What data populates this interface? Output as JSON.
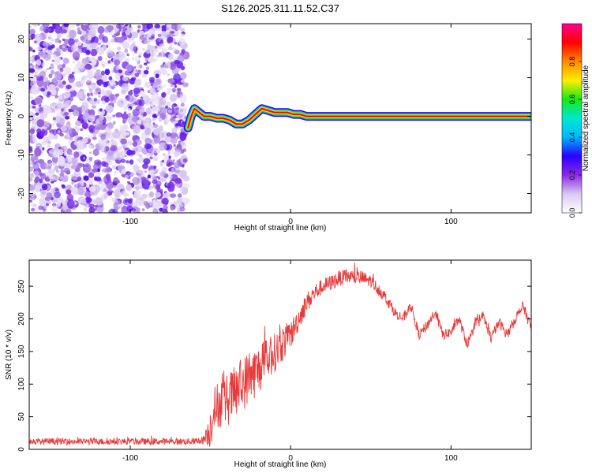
{
  "title": "S126.2025.311.11.52.C37",
  "chart_data": [
    {
      "type": "heatmap",
      "xlabel": "Height of straight line (km)",
      "ylabel": "Frequency (Hz)",
      "xlim": [
        -163,
        150
      ],
      "ylim": [
        -25,
        24
      ],
      "xticks": [
        -100,
        0,
        100
      ],
      "xtick_labels": [
        "-100",
        "0",
        "100"
      ],
      "yticks": [
        -20,
        -10,
        0,
        10,
        20
      ],
      "ytick_labels": [
        "-20",
        "-10",
        "0",
        "10",
        "20"
      ],
      "noise_region_x": [
        -163,
        -65
      ],
      "ridge": {
        "x": [
          -64,
          -62,
          -60,
          -57,
          -54,
          -50,
          -46,
          -42,
          -38,
          -34,
          -30,
          -26,
          -22,
          -18,
          -14,
          -10,
          -6,
          -2,
          2,
          6,
          10,
          14,
          18,
          20,
          150
        ],
        "y": [
          -3,
          0,
          2,
          1,
          0,
          0,
          -0.5,
          -0.5,
          -1,
          -2,
          -2,
          -1,
          0.5,
          2,
          1.5,
          1,
          1,
          1,
          0.5,
          0.5,
          0,
          0,
          0,
          0,
          0
        ]
      },
      "colorbar": {
        "label": "Normalized spectral amplitude",
        "range": [
          0,
          1
        ],
        "ticks": [
          0.0,
          0.2,
          0.4,
          0.6,
          0.8
        ],
        "tick_labels": [
          "0.0",
          "0.2",
          "0.4",
          "0.6",
          "0.8"
        ],
        "colors": [
          "#ffffff",
          "#d9c8f2",
          "#8a2be2",
          "#2a00ff",
          "#00b8ff",
          "#00e8d0",
          "#18e818",
          "#ffee00",
          "#ff8a00",
          "#ff0000",
          "#ff0090"
        ]
      }
    },
    {
      "type": "line",
      "xlabel": "Height of straight line (km)",
      "ylabel": "SNR (10 * v/v)",
      "xlim": [
        -163,
        150
      ],
      "ylim": [
        0,
        290
      ],
      "xticks": [
        -100,
        0,
        100
      ],
      "xtick_labels": [
        "-100",
        "0",
        "100"
      ],
      "yticks": [
        0,
        50,
        100,
        150,
        200,
        250
      ],
      "ytick_labels": [
        "0",
        "50",
        "100",
        "150",
        "200",
        "250"
      ],
      "series": [
        {
          "name": "SNR",
          "color": "#e83a3a",
          "x": [
            -163,
            -140,
            -120,
            -100,
            -80,
            -60,
            -55,
            -52,
            -50,
            -48,
            -45,
            -40,
            -35,
            -30,
            -25,
            -20,
            -15,
            -10,
            -5,
            0,
            5,
            10,
            15,
            20,
            25,
            30,
            35,
            40,
            45,
            50,
            55,
            60,
            65,
            70,
            75,
            80,
            85,
            90,
            95,
            100,
            105,
            110,
            115,
            120,
            125,
            130,
            135,
            140,
            145,
            150
          ],
          "y": [
            12,
            12,
            12,
            12,
            12,
            12,
            14,
            20,
            35,
            60,
            70,
            75,
            85,
            100,
            112,
            122,
            135,
            148,
            162,
            175,
            200,
            225,
            240,
            250,
            255,
            262,
            265,
            264,
            262,
            258,
            245,
            230,
            210,
            200,
            220,
            175,
            190,
            210,
            175,
            180,
            200,
            160,
            190,
            205,
            170,
            195,
            175,
            200,
            220,
            185
          ],
          "noise": [
            5,
            5,
            5,
            5,
            5,
            5,
            6,
            15,
            35,
            35,
            38,
            40,
            42,
            42,
            42,
            38,
            35,
            30,
            28,
            22,
            18,
            16,
            14,
            12,
            12,
            12,
            12,
            12,
            12,
            10,
            10,
            10,
            8,
            8,
            8,
            8,
            8,
            8,
            8,
            8,
            8,
            8,
            8,
            8,
            8,
            8,
            8,
            8,
            8,
            8
          ]
        }
      ]
    }
  ]
}
